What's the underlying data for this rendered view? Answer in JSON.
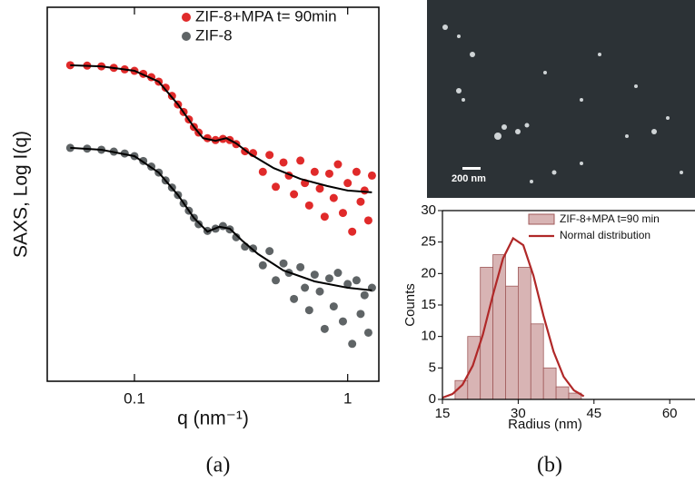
{
  "chart_data": [
    {
      "type": "scatter",
      "xlabel": "q (nm⁻¹)",
      "ylabel": "SAXS, Log I(q)",
      "xscale": "log",
      "xlim": [
        0.039,
        1.4
      ],
      "ylim": [
        0,
        100
      ],
      "xticks": [
        0.1,
        1
      ],
      "series": [
        {
          "name": "ZIF-8+MPA t= 90min",
          "color": "#e02a2a",
          "x": [
            0.05,
            0.06,
            0.07,
            0.08,
            0.09,
            0.1,
            0.11,
            0.12,
            0.13,
            0.14,
            0.15,
            0.16,
            0.17,
            0.18,
            0.19,
            0.2,
            0.22,
            0.24,
            0.26,
            0.28,
            0.3,
            0.33,
            0.36,
            0.4,
            0.43,
            0.46,
            0.5,
            0.53,
            0.56,
            0.6,
            0.63,
            0.66,
            0.7,
            0.74,
            0.78,
            0.82,
            0.86,
            0.9,
            0.95,
            1.0,
            1.05,
            1.1,
            1.15,
            1.2,
            1.25,
            1.3
          ],
          "values": [
            84.5,
            84.4,
            84.2,
            83.8,
            83.4,
            83.0,
            82.2,
            81.3,
            80.1,
            78.5,
            76.3,
            74.0,
            72.0,
            70.0,
            68.0,
            66.5,
            65.0,
            64.5,
            64.8,
            64.5,
            63.4,
            61.5,
            61.0,
            56.0,
            60.5,
            52.0,
            58.5,
            55.0,
            50.0,
            59.0,
            53.0,
            47.0,
            56.0,
            51.5,
            44.0,
            55.5,
            49.0,
            58.0,
            45.0,
            53.0,
            40.0,
            56.0,
            48.0,
            51.0,
            43.0,
            55.0
          ]
        },
        {
          "name": "ZIF-8",
          "color": "#5f6466",
          "x": [
            0.05,
            0.06,
            0.07,
            0.08,
            0.09,
            0.1,
            0.11,
            0.12,
            0.13,
            0.14,
            0.15,
            0.16,
            0.17,
            0.18,
            0.19,
            0.2,
            0.22,
            0.24,
            0.26,
            0.28,
            0.3,
            0.33,
            0.36,
            0.4,
            0.43,
            0.46,
            0.5,
            0.53,
            0.56,
            0.6,
            0.63,
            0.66,
            0.7,
            0.74,
            0.78,
            0.82,
            0.86,
            0.9,
            0.95,
            1.0,
            1.05,
            1.1,
            1.15,
            1.2,
            1.25,
            1.3
          ],
          "values": [
            62.4,
            62.2,
            61.9,
            61.4,
            60.9,
            60.2,
            58.9,
            57.4,
            55.8,
            53.7,
            51.8,
            49.8,
            47.6,
            45.6,
            43.7,
            42.0,
            40.2,
            40.8,
            41.5,
            40.6,
            38.5,
            36.0,
            35.5,
            31.0,
            34.8,
            27.0,
            31.5,
            29.0,
            22.0,
            30.5,
            25.0,
            19.0,
            28.5,
            24.0,
            14.0,
            27.5,
            20.0,
            29.0,
            16.0,
            26.0,
            10.0,
            27.0,
            18.0,
            23.0,
            13.0,
            25.0
          ]
        }
      ],
      "fit_lines": [
        {
          "color": "#000000",
          "x": [
            0.05,
            0.07,
            0.1,
            0.13,
            0.16,
            0.19,
            0.21,
            0.24,
            0.27,
            0.3,
            0.35,
            0.45,
            0.6,
            0.8,
            1.0,
            1.3
          ],
          "values": [
            84.5,
            84.2,
            83.0,
            80.1,
            74.0,
            68.0,
            65.0,
            64.3,
            65.0,
            63.6,
            60.7,
            57.0,
            54.1,
            52.2,
            51.0,
            50.5
          ]
        },
        {
          "color": "#000000",
          "x": [
            0.05,
            0.07,
            0.1,
            0.13,
            0.16,
            0.19,
            0.22,
            0.25,
            0.28,
            0.32,
            0.38,
            0.5,
            0.7,
            1.0,
            1.3
          ],
          "values": [
            62.4,
            61.9,
            60.2,
            55.8,
            49.8,
            43.7,
            40.0,
            41.3,
            40.8,
            37.6,
            34.0,
            29.6,
            26.7,
            25.0,
            24.3
          ]
        }
      ]
    },
    {
      "type": "histogram",
      "xlabel": "Radius (nm)",
      "ylabel": "Counts",
      "xlim": [
        15,
        65
      ],
      "ylim": [
        0,
        30
      ],
      "xticks": [
        15,
        30,
        45,
        60
      ],
      "yticks": [
        0,
        5,
        10,
        15,
        20,
        25,
        30
      ],
      "bins": [
        17.5,
        20,
        22.5,
        25,
        27.5,
        30,
        32.5,
        35,
        37.5,
        40,
        42.5
      ],
      "series": [
        {
          "name": "ZIF-8+MPA t=90 min",
          "color": "#d8b4b4",
          "values": [
            3,
            10,
            21,
            23,
            18,
            21,
            12,
            5,
            2,
            1
          ]
        }
      ],
      "curve": {
        "name": "Normal distribution",
        "color": "#b02828",
        "x": [
          15,
          17,
          19,
          21,
          23,
          25,
          27,
          29,
          31,
          33,
          35,
          37,
          39,
          41,
          43
        ],
        "values": [
          0.27,
          0.87,
          2.35,
          5.36,
          10.3,
          16.6,
          22.4,
          25.6,
          24.5,
          19.7,
          13.3,
          7.6,
          3.6,
          1.46,
          0.49
        ]
      }
    }
  ],
  "image": {
    "scale_bar": "200 nm"
  },
  "panel_labels": [
    "(a)",
    "(b)"
  ]
}
